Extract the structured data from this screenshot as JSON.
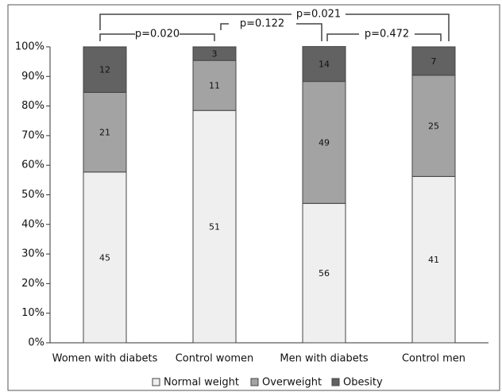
{
  "chart_data": {
    "type": "stacked_bar",
    "categories": [
      "Women with diabets",
      "Control women",
      "Men with diabets",
      "Control men"
    ],
    "series": [
      {
        "name": "Normal weight",
        "color": "#efefef",
        "values": [
          57.7,
          78.5,
          47.1,
          56.2
        ],
        "value_labels": [
          "45",
          "51",
          "56",
          "41"
        ]
      },
      {
        "name": "Overweight",
        "color": "#a3a3a3",
        "values": [
          26.9,
          16.9,
          41.2,
          34.2
        ],
        "value_labels": [
          "21",
          "11",
          "49",
          "25"
        ]
      },
      {
        "name": "Obesity",
        "color": "#626262",
        "values": [
          15.4,
          4.6,
          11.8,
          9.6
        ],
        "value_labels": [
          "12",
          "3",
          "14",
          "7"
        ]
      }
    ],
    "ylim": [
      0,
      100
    ],
    "yticks": [
      {
        "value": 0,
        "label": "0%"
      },
      {
        "value": 10,
        "label": "10%"
      },
      {
        "value": 20,
        "label": "20%"
      },
      {
        "value": 30,
        "label": "30%"
      },
      {
        "value": 40,
        "label": "40%"
      },
      {
        "value": 50,
        "label": "50%"
      },
      {
        "value": 60,
        "label": "60%"
      },
      {
        "value": 70,
        "label": "70%"
      },
      {
        "value": 80,
        "label": "80%"
      },
      {
        "value": 90,
        "label": "90%"
      },
      {
        "value": 100,
        "label": "100%"
      }
    ],
    "annotations": [
      "p=0.020",
      "p=0.122",
      "p=0.021",
      "p=0.472"
    ],
    "legend": "bottom",
    "grid": false
  }
}
